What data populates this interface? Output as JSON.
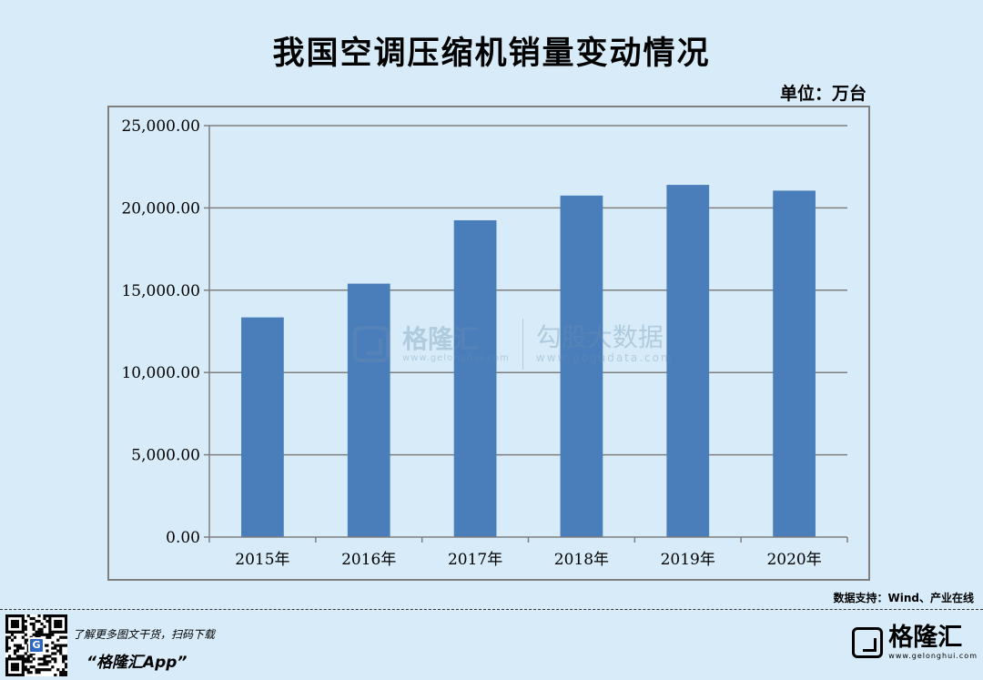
{
  "header": {
    "title": "我国空调压缩机销量变动情况",
    "unit": "单位：万台"
  },
  "footer": {
    "source": "数据支持：Wind、产业在线",
    "promo_line1": "了解更多图文干货，扫码下载",
    "promo_line2": "“格隆汇App”",
    "brand_name": "格隆汇",
    "brand_url": "www.gelonghui.com",
    "qr_logo": "G"
  },
  "watermark": {
    "name": "格隆汇",
    "url": "www.gelonghui.com",
    "name2": "勾股大数据",
    "url2": "www.gogudata.com"
  },
  "colors": {
    "background": "#d7ecf8",
    "bar": "#4a7ebb",
    "grid": "#7f7f7f"
  },
  "chart_data": {
    "type": "bar",
    "title": "我国空调压缩机销量变动情况",
    "unit": "万台",
    "categories": [
      "2015年",
      "2016年",
      "2017年",
      "2018年",
      "2019年",
      "2020年"
    ],
    "values": [
      13350,
      15400,
      19250,
      20750,
      21400,
      21050
    ],
    "ylim": [
      0,
      25000
    ],
    "yticks": [
      0,
      5000,
      10000,
      15000,
      20000,
      25000
    ],
    "ytick_labels": [
      "0.00",
      "5,000.00",
      "10,000.00",
      "15,000.00",
      "20,000.00",
      "25,000.00"
    ],
    "grid": true,
    "legend": "none"
  }
}
